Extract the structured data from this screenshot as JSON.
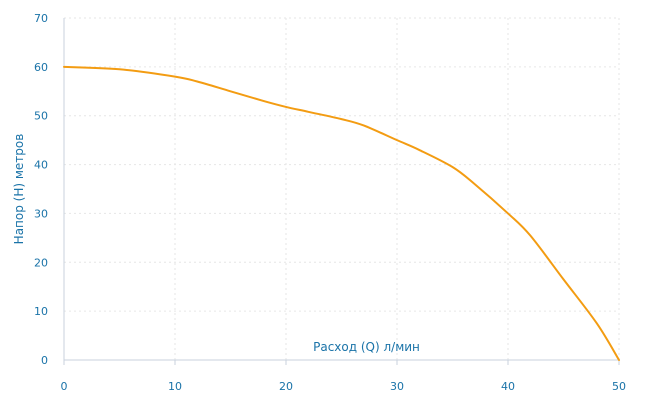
{
  "chart_data": {
    "type": "line",
    "title": "",
    "xlabel": "Расход (Q) л/мин",
    "ylabel": "Напор (H) метров",
    "xlim": [
      0,
      50
    ],
    "ylim": [
      0,
      70
    ],
    "xticks": [
      0,
      10,
      20,
      30,
      40,
      50
    ],
    "yticks": [
      0,
      10,
      20,
      30,
      40,
      50,
      60,
      70
    ],
    "grid": true,
    "legend": "none",
    "series": [
      {
        "color": "#f39c12",
        "x": [
          0,
          5,
          10,
          12,
          15,
          18,
          20,
          22,
          25,
          27,
          30,
          32,
          35,
          37,
          40,
          42,
          45,
          48,
          50
        ],
        "y": [
          60,
          59.5,
          58,
          57,
          55,
          53,
          51.8,
          50.8,
          49.3,
          48,
          45,
          43,
          39.5,
          36,
          30,
          25.5,
          16.5,
          7.5,
          0
        ]
      }
    ]
  }
}
